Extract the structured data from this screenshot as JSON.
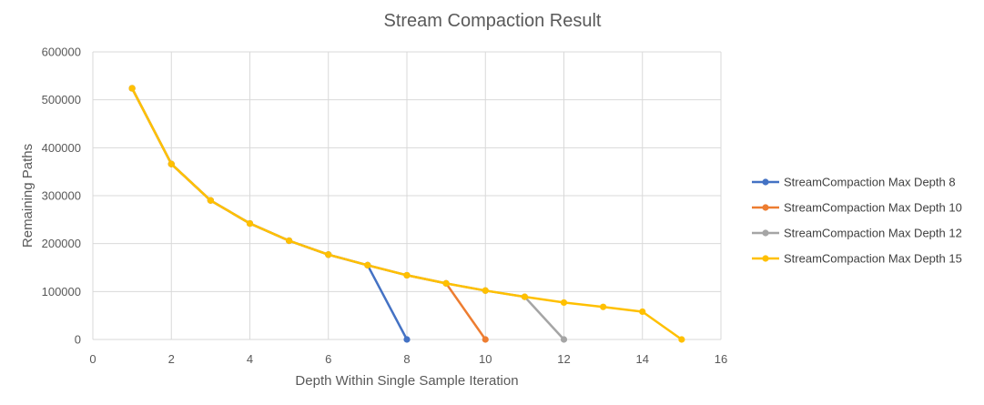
{
  "chart_data": {
    "type": "line",
    "title": "Stream Compaction Result",
    "xlabel": "Depth Within Single Sample Iteration",
    "ylabel": "Remaining Paths",
    "xlim": [
      0,
      16
    ],
    "ylim": [
      0,
      600000
    ],
    "x_ticks": [
      "0",
      "2",
      "4",
      "6",
      "8",
      "10",
      "12",
      "14",
      "16"
    ],
    "y_ticks": [
      "0",
      "100000",
      "200000",
      "300000",
      "400000",
      "500000",
      "600000"
    ],
    "grid": true,
    "legend_position": "right",
    "series": [
      {
        "name": "StreamCompaction Max Depth 8",
        "color": "#4472c4",
        "x": [
          1,
          2,
          3,
          4,
          5,
          6,
          7,
          8
        ],
        "y": [
          524000,
          366000,
          290000,
          242000,
          206000,
          177000,
          155000,
          0
        ]
      },
      {
        "name": "StreamCompaction Max Depth 10",
        "color": "#ed7d31",
        "x": [
          1,
          2,
          3,
          4,
          5,
          6,
          7,
          8,
          9,
          10
        ],
        "y": [
          524000,
          366000,
          290000,
          242000,
          206000,
          177000,
          155000,
          134000,
          117000,
          0
        ]
      },
      {
        "name": "StreamCompaction Max Depth 12",
        "color": "#a5a5a5",
        "x": [
          1,
          2,
          3,
          4,
          5,
          6,
          7,
          8,
          9,
          10,
          11,
          12
        ],
        "y": [
          524000,
          366000,
          290000,
          242000,
          206000,
          177000,
          155000,
          134000,
          117000,
          102000,
          89000,
          0
        ]
      },
      {
        "name": "StreamCompaction Max Depth 15",
        "color": "#ffc000",
        "x": [
          1,
          2,
          3,
          4,
          5,
          6,
          7,
          8,
          9,
          10,
          11,
          12,
          13,
          14,
          15
        ],
        "y": [
          524000,
          366000,
          290000,
          242000,
          206000,
          177000,
          155000,
          134000,
          117000,
          102000,
          89000,
          77000,
          68000,
          58000,
          0
        ]
      }
    ]
  }
}
